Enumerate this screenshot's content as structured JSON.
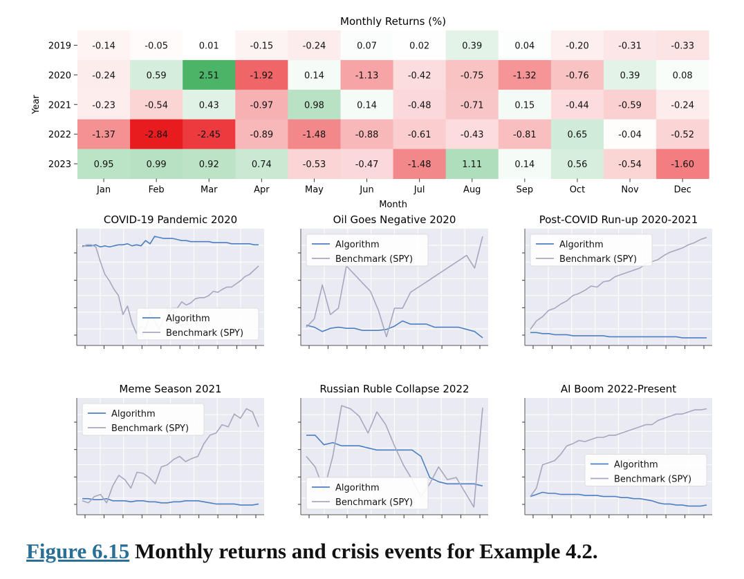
{
  "caption": {
    "ref": "Figure 6.15",
    "text": " Monthly returns and crisis events for Example 4.2."
  },
  "chart_data": [
    {
      "type": "heatmap",
      "title": "Monthly Returns (%)",
      "xlabel": "Month",
      "ylabel": "Year",
      "x": [
        "Jan",
        "Feb",
        "Mar",
        "Apr",
        "May",
        "Jun",
        "Jul",
        "Aug",
        "Sep",
        "Oct",
        "Nov",
        "Dec"
      ],
      "y": [
        "2019",
        "2020",
        "2021",
        "2022",
        "2023"
      ],
      "values": [
        [
          -0.14,
          -0.05,
          0.01,
          -0.15,
          -0.24,
          0.07,
          0.02,
          0.39,
          0.04,
          -0.2,
          -0.31,
          -0.33
        ],
        [
          -0.24,
          0.59,
          2.51,
          -1.92,
          0.14,
          -1.13,
          -0.42,
          -0.75,
          -1.32,
          -0.76,
          0.39,
          0.08
        ],
        [
          -0.23,
          -0.54,
          0.43,
          -0.97,
          0.98,
          0.14,
          -0.48,
          -0.71,
          0.15,
          -0.44,
          -0.59,
          -0.24
        ],
        [
          -1.37,
          -2.84,
          -2.45,
          -0.89,
          -1.48,
          -0.88,
          -0.61,
          -0.43,
          -0.81,
          0.65,
          -0.04,
          -0.52
        ],
        [
          0.95,
          0.99,
          0.92,
          0.74,
          -0.53,
          -0.47,
          -1.48,
          1.11,
          0.14,
          0.56,
          -0.54,
          -1.6
        ]
      ],
      "labels": [
        [
          "-0.14",
          "-0.05",
          "0.01",
          "-0.15",
          "-0.24",
          "0.07",
          "0.02",
          "0.39",
          "0.04",
          "-0.20",
          "-0.31",
          "-0.33"
        ],
        [
          "-0.24",
          "0.59",
          "2.51",
          "-1.92",
          "0.14",
          "-1.13",
          "-0.42",
          "-0.75",
          "-1.32",
          "-0.76",
          "0.39",
          "0.08"
        ],
        [
          "-0.23",
          "-0.54",
          "0.43",
          "-0.97",
          "0.98",
          "0.14",
          "-0.48",
          "-0.71",
          "0.15",
          "-0.44",
          "-0.59",
          "-0.24"
        ],
        [
          "-1.37",
          "-2.84",
          "-2.45",
          "-0.89",
          "-1.48",
          "-0.88",
          "-0.61",
          "-0.43",
          "-0.81",
          "0.65",
          "-0.04",
          "-0.52"
        ],
        [
          "0.95",
          "0.99",
          "0.92",
          "0.74",
          "-0.53",
          "-0.47",
          "-1.48",
          "1.11",
          "0.14",
          "0.56",
          "-0.54",
          "-1.60"
        ]
      ],
      "colorscale": {
        "negative": "#e8161a",
        "neutral": "#ffffff",
        "positive": "#2fa84f"
      }
    },
    {
      "type": "line",
      "title": "COVID-19 Pandemic 2020",
      "legend": "bottom-right",
      "series": [
        {
          "name": "Algorithm",
          "color": "#4a7fc1",
          "values": [
            0.89,
            0.89,
            0.89,
            0.9,
            0.88,
            0.89,
            0.88,
            0.89,
            0.9,
            0.9,
            0.91,
            0.89,
            0.9,
            0.89,
            0.94,
            0.91,
            0.98,
            0.97,
            0.96,
            0.96,
            0.96,
            0.95,
            0.94,
            0.94,
            0.93,
            0.93,
            0.93,
            0.93,
            0.93,
            0.92,
            0.92,
            0.92,
            0.92,
            0.91,
            0.91,
            0.91,
            0.91,
            0.91,
            0.9,
            0.9
          ]
        },
        {
          "name": "Benchmark (SPY)",
          "color": "#a6a6c0",
          "values": [
            0.88,
            0.9,
            0.9,
            0.88,
            0.74,
            0.62,
            0.56,
            0.48,
            0.42,
            0.24,
            0.32,
            0.16,
            0.06,
            0.13,
            0.1,
            0.26,
            0.18,
            0.1,
            0.2,
            0.24,
            0.3,
            0.3,
            0.36,
            0.33,
            0.35,
            0.39,
            0.4,
            0.4,
            0.42,
            0.46,
            0.45,
            0.48,
            0.5,
            0.5,
            0.53,
            0.56,
            0.6,
            0.62,
            0.66,
            0.7
          ]
        }
      ]
    },
    {
      "type": "line",
      "title": "Oil Goes Negative 2020",
      "legend": "top-left",
      "series": [
        {
          "name": "Algorithm",
          "color": "#4a7fc1",
          "values": [
            0.14,
            0.12,
            0.08,
            0.11,
            0.12,
            0.11,
            0.11,
            0.09,
            0.09,
            0.09,
            0.1,
            0.13,
            0.18,
            0.15,
            0.15,
            0.15,
            0.12,
            0.12,
            0.12,
            0.12,
            0.1,
            0.08,
            0.02
          ]
        },
        {
          "name": "Benchmark (SPY)",
          "color": "#a6a6c0",
          "values": [
            0.12,
            0.2,
            0.52,
            0.24,
            0.3,
            0.7,
            0.62,
            0.54,
            0.46,
            0.28,
            0.03,
            0.3,
            0.3,
            0.45,
            0.5,
            0.55,
            0.6,
            0.65,
            0.7,
            0.75,
            0.8,
            0.68,
            0.98
          ]
        }
      ]
    },
    {
      "type": "line",
      "title": "Post-COVID Run-up 2020-2021",
      "legend": "top-left",
      "series": [
        {
          "name": "Algorithm",
          "color": "#4a7fc1",
          "values": [
            0.07,
            0.07,
            0.06,
            0.06,
            0.05,
            0.05,
            0.05,
            0.04,
            0.04,
            0.04,
            0.04,
            0.04,
            0.04,
            0.03,
            0.03,
            0.03,
            0.03,
            0.03,
            0.03,
            0.03,
            0.03,
            0.03,
            0.03,
            0.03,
            0.03,
            0.02,
            0.02,
            0.02,
            0.02,
            0.02
          ]
        },
        {
          "name": "Benchmark (SPY)",
          "color": "#a6a6c0",
          "values": [
            0.1,
            0.18,
            0.22,
            0.28,
            0.3,
            0.34,
            0.37,
            0.42,
            0.44,
            0.47,
            0.51,
            0.5,
            0.55,
            0.56,
            0.6,
            0.62,
            0.64,
            0.66,
            0.68,
            0.72,
            0.74,
            0.76,
            0.8,
            0.83,
            0.85,
            0.87,
            0.9,
            0.92,
            0.95,
            0.97
          ]
        }
      ]
    },
    {
      "type": "line",
      "title": "Meme Season 2021",
      "legend": "top-left",
      "series": [
        {
          "name": "Algorithm",
          "color": "#4a7fc1",
          "values": [
            0.1,
            0.1,
            0.09,
            0.09,
            0.1,
            0.08,
            0.08,
            0.08,
            0.07,
            0.08,
            0.08,
            0.07,
            0.07,
            0.06,
            0.06,
            0.07,
            0.07,
            0.08,
            0.08,
            0.08,
            0.07,
            0.06,
            0.05,
            0.05,
            0.05,
            0.05,
            0.04,
            0.04,
            0.04,
            0.05
          ]
        },
        {
          "name": "Benchmark (SPY)",
          "color": "#a6a6c0",
          "values": [
            0.08,
            0.06,
            0.12,
            0.14,
            0.06,
            0.22,
            0.32,
            0.28,
            0.2,
            0.35,
            0.34,
            0.3,
            0.24,
            0.4,
            0.42,
            0.47,
            0.5,
            0.45,
            0.48,
            0.5,
            0.62,
            0.7,
            0.72,
            0.8,
            0.78,
            0.9,
            0.86,
            0.95,
            0.92,
            0.78
          ]
        }
      ]
    },
    {
      "type": "line",
      "title": "Russian Ruble Collapse 2022",
      "legend": "bottom-left",
      "series": [
        {
          "name": "Algorithm",
          "color": "#4a7fc1",
          "values": [
            0.7,
            0.7,
            0.61,
            0.63,
            0.6,
            0.6,
            0.6,
            0.58,
            0.56,
            0.56,
            0.56,
            0.56,
            0.56,
            0.5,
            0.3,
            0.26,
            0.24,
            0.24,
            0.24,
            0.24,
            0.22
          ]
        },
        {
          "name": "Benchmark (SPY)",
          "color": "#a6a6c0",
          "values": [
            0.5,
            0.4,
            0.18,
            0.5,
            0.98,
            0.95,
            0.88,
            0.72,
            0.92,
            0.8,
            0.6,
            0.42,
            0.28,
            0.12,
            0.24,
            0.4,
            0.28,
            0.3,
            0.16,
            0.02,
            0.96
          ]
        }
      ]
    },
    {
      "type": "line",
      "title": "AI Boom 2022-Present",
      "legend": "center-right",
      "series": [
        {
          "name": "Algorithm",
          "color": "#4a7fc1",
          "values": [
            0.12,
            0.14,
            0.16,
            0.15,
            0.15,
            0.14,
            0.14,
            0.14,
            0.14,
            0.13,
            0.13,
            0.13,
            0.12,
            0.12,
            0.12,
            0.11,
            0.11,
            0.1,
            0.1,
            0.09,
            0.08,
            0.06,
            0.05,
            0.05,
            0.04,
            0.04,
            0.03,
            0.03,
            0.03,
            0.04
          ]
        },
        {
          "name": "Benchmark (SPY)",
          "color": "#a6a6c0",
          "values": [
            0.12,
            0.2,
            0.42,
            0.44,
            0.46,
            0.52,
            0.6,
            0.62,
            0.65,
            0.64,
            0.66,
            0.68,
            0.68,
            0.7,
            0.7,
            0.72,
            0.74,
            0.76,
            0.78,
            0.8,
            0.8,
            0.84,
            0.86,
            0.88,
            0.9,
            0.9,
            0.92,
            0.94,
            0.94,
            0.95
          ]
        }
      ]
    }
  ]
}
